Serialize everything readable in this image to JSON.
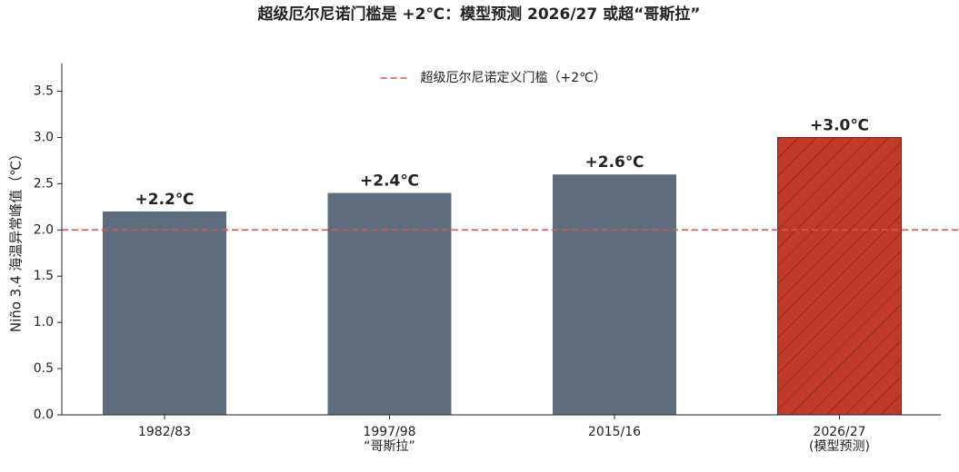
{
  "chart_data": {
    "type": "bar",
    "title": "超级厄尔尼诺门槛是 +2℃：模型预测 2026/27 或超“哥斯拉”",
    "y_label": "Niño 3.4 海温异常峰值（℃）",
    "categories": [
      "1982/83",
      "1997/98\n“哥斯拉”",
      "2015/16",
      "2026/27\n(模型预测)"
    ],
    "values": [
      2.2,
      2.4,
      2.6,
      3.0
    ],
    "value_labels": [
      "+2.2℃",
      "+2.4℃",
      "+2.6℃",
      "+3.0℃"
    ],
    "colors": [
      "#5d6d7e",
      "#5d6d7e",
      "#5d6d7e",
      "#c0392b"
    ],
    "hatch": [
      false,
      false,
      false,
      true
    ],
    "threshold": {
      "value": 2,
      "label": "超级厄尔尼诺定义门槛（+2℃）",
      "color": "#d9534f"
    },
    "ylim": [
      0,
      3.8
    ],
    "yticks": [
      {
        "value": 0,
        "label": "0.0"
      },
      {
        "value": 0.5,
        "label": "0.5"
      },
      {
        "value": 1,
        "label": "1.0"
      },
      {
        "value": 1.5,
        "label": "1.5"
      },
      {
        "value": 2,
        "label": "2.0"
      },
      {
        "value": 2.5,
        "label": "2.5"
      },
      {
        "value": 3,
        "label": "3.0"
      },
      {
        "value": 3.5,
        "label": "3.5"
      }
    ],
    "legend": "upper center"
  }
}
